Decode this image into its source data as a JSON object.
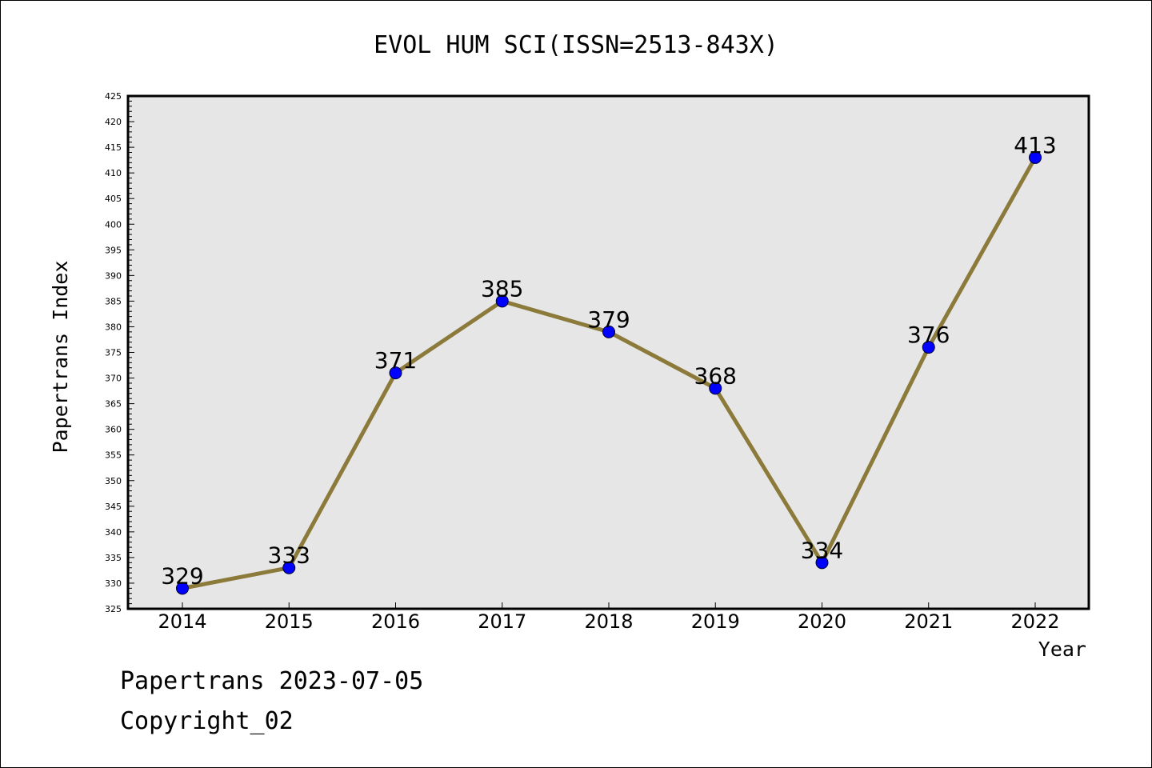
{
  "chart_data": {
    "type": "line",
    "title": "EVOL HUM SCI(ISSN=2513-843X)",
    "xlabel": "Year",
    "ylabel": "Papertrans Index",
    "x": [
      "2014",
      "2015",
      "2016",
      "2017",
      "2018",
      "2019",
      "2020",
      "2021",
      "2022"
    ],
    "values": [
      329,
      333,
      371,
      385,
      379,
      368,
      334,
      376,
      413
    ],
    "data_labels": [
      "329",
      "333",
      "371",
      "385",
      "379",
      "368",
      "334",
      "376",
      "413"
    ],
    "ylim": [
      325,
      425
    ],
    "yticks": [
      "325",
      "330",
      "335",
      "340",
      "345",
      "350",
      "355",
      "360",
      "365",
      "370",
      "375",
      "380",
      "385",
      "390",
      "395",
      "400",
      "405",
      "410",
      "415",
      "420",
      "425"
    ],
    "grid": false,
    "colors": {
      "line": "#8b7a3a",
      "marker": "#0000ff",
      "plot_background": "#e6e6e6"
    }
  },
  "footer": {
    "line1": "Papertrans 2023-07-05",
    "line2": "Copyright_02"
  }
}
